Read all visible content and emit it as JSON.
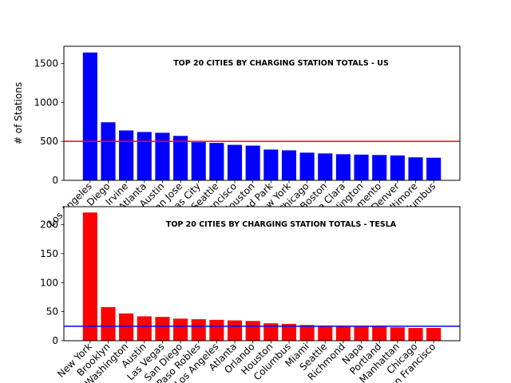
{
  "chart_data": [
    {
      "type": "bar",
      "title": "TOP 20 CITIES BY CHARGING STATION TOTALS - US",
      "ylabel": "# of Stations",
      "xlabel": "",
      "ylim": [
        0,
        1720
      ],
      "yticks": [
        0,
        500,
        1000,
        1500
      ],
      "bar_color": "#0000ff",
      "reference_line": {
        "value": 500,
        "color": "#ff0000"
      },
      "categories": [
        "Los Angeles",
        "San Diego",
        "Irvine",
        "Atlanta",
        "Austin",
        "San Jose",
        "Kansas City",
        "Seattle",
        "San Francisco",
        "Houston",
        "Overland Park",
        "New York",
        "Chicago",
        "Boston",
        "Santa Clara",
        "Arlington",
        "Sacramento",
        "Denver",
        "Baltimore",
        "Columbus"
      ],
      "values": [
        1640,
        745,
        640,
        620,
        610,
        570,
        490,
        480,
        455,
        445,
        395,
        385,
        355,
        345,
        335,
        330,
        325,
        320,
        295,
        290
      ]
    },
    {
      "type": "bar",
      "title": "TOP 20 CITIES BY CHARGING STATION TOTALS - TESLA",
      "ylabel": "",
      "xlabel": "",
      "ylim": [
        0,
        231
      ],
      "yticks": [
        0,
        50,
        100,
        150,
        200
      ],
      "bar_color": "#ff0000",
      "reference_line": {
        "value": 25,
        "color": "#0000ff"
      },
      "categories": [
        "New York",
        "Brooklyn",
        "Washington",
        "Austin",
        "Las Vegas",
        "San Diego",
        "Paso Robles",
        "Los Angeles",
        "Atlanta",
        "Orlando",
        "Houston",
        "Columbus",
        "Miami",
        "Seattle",
        "Richmond",
        "Napa",
        "Portland",
        "Manhattan",
        "Chicago",
        "San Francisco"
      ],
      "values": [
        221,
        58,
        47,
        42,
        41,
        38,
        37,
        36,
        35,
        34,
        30,
        29,
        27,
        26,
        25,
        25,
        24,
        23,
        22,
        22
      ]
    }
  ]
}
